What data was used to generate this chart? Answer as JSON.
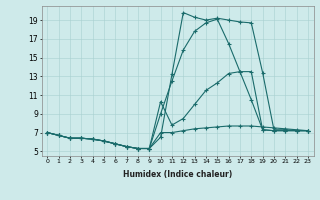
{
  "xlabel": "Humidex (Indice chaleur)",
  "bg_color": "#ceeaea",
  "line_color": "#1a6b6b",
  "xlim": [
    -0.5,
    23.5
  ],
  "ylim": [
    4.5,
    20.5
  ],
  "xticks": [
    0,
    1,
    2,
    3,
    4,
    5,
    6,
    7,
    8,
    9,
    10,
    11,
    12,
    13,
    14,
    15,
    16,
    17,
    18,
    19,
    20,
    21,
    22,
    23
  ],
  "yticks": [
    5,
    7,
    9,
    11,
    13,
    15,
    17,
    19
  ],
  "line1_x": [
    0,
    1,
    2,
    3,
    4,
    5,
    6,
    7,
    8,
    9,
    10,
    11,
    12,
    13,
    14,
    15,
    16,
    17,
    18,
    19,
    20,
    21,
    22,
    23
  ],
  "line1_y": [
    7.0,
    6.7,
    6.4,
    6.4,
    6.3,
    6.1,
    5.8,
    5.5,
    5.3,
    5.3,
    6.5,
    13.2,
    19.8,
    19.3,
    19.0,
    19.2,
    19.0,
    18.8,
    18.7,
    13.4,
    7.3,
    7.3,
    7.2,
    7.2
  ],
  "line2_x": [
    0,
    1,
    2,
    3,
    4,
    5,
    6,
    7,
    8,
    9,
    10,
    11,
    12,
    13,
    14,
    15,
    16,
    17,
    18,
    19,
    20,
    21,
    22,
    23
  ],
  "line2_y": [
    7.0,
    6.7,
    6.4,
    6.4,
    6.3,
    6.1,
    5.8,
    5.5,
    5.3,
    5.3,
    9.0,
    12.5,
    15.8,
    17.8,
    18.7,
    19.1,
    16.5,
    13.5,
    13.5,
    7.3,
    7.2,
    7.2,
    7.2,
    7.2
  ],
  "line3_x": [
    0,
    1,
    2,
    3,
    4,
    5,
    6,
    7,
    8,
    9,
    10,
    11,
    12,
    13,
    14,
    15,
    16,
    17,
    18,
    19,
    20,
    21,
    22,
    23
  ],
  "line3_y": [
    7.0,
    6.7,
    6.4,
    6.4,
    6.3,
    6.1,
    5.8,
    5.5,
    5.3,
    5.3,
    10.3,
    7.8,
    8.5,
    10.0,
    11.5,
    12.3,
    13.3,
    13.5,
    10.5,
    7.3,
    7.2,
    7.2,
    7.2,
    7.2
  ],
  "line4_x": [
    0,
    1,
    2,
    3,
    4,
    5,
    6,
    7,
    8,
    9,
    10,
    11,
    12,
    13,
    14,
    15,
    16,
    17,
    18,
    19,
    20,
    21,
    22,
    23
  ],
  "line4_y": [
    7.0,
    6.7,
    6.4,
    6.4,
    6.3,
    6.1,
    5.8,
    5.5,
    5.3,
    5.3,
    7.0,
    7.0,
    7.2,
    7.4,
    7.5,
    7.6,
    7.7,
    7.7,
    7.7,
    7.6,
    7.5,
    7.4,
    7.3,
    7.2
  ]
}
